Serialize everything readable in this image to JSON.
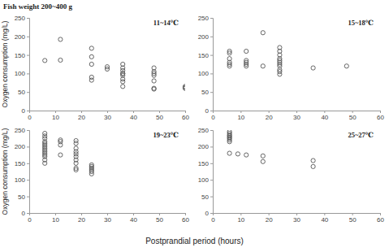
{
  "title": "Fish weight 200~400 g",
  "x_label": "Postprandial period (hours)",
  "chart_data": [
    {
      "type": "scatter",
      "title": "11~14℃",
      "y_label": "Oxygen consumption (mg/L)",
      "marker": "circle",
      "color": "#555555",
      "x": [
        6,
        12,
        12,
        24,
        24,
        24,
        24,
        24,
        30,
        30,
        36,
        36,
        36,
        36,
        36,
        36,
        36,
        36,
        36,
        48,
        48,
        48,
        48,
        48,
        48,
        48,
        60,
        60,
        60
      ],
      "values": [
        135,
        192,
        136,
        168,
        145,
        125,
        90,
        82,
        118,
        112,
        125,
        115,
        108,
        100,
        95,
        85,
        78,
        65,
        100,
        115,
        105,
        95,
        80,
        60,
        58,
        100,
        65,
        62,
        60
      ],
      "xlim": [
        0,
        60
      ],
      "ylim": [
        0,
        250
      ],
      "xticks": [
        0,
        10,
        20,
        30,
        40,
        50,
        60
      ],
      "yticks": [
        0,
        50,
        100,
        150,
        200,
        250
      ]
    },
    {
      "type": "scatter",
      "title": "15~18℃",
      "marker": "circle",
      "color": "#555555",
      "x": [
        6,
        6,
        6,
        6,
        6,
        6,
        12,
        12,
        12,
        12,
        12,
        18,
        18,
        24,
        24,
        24,
        24,
        24,
        24,
        24,
        24,
        24,
        24,
        24,
        36,
        48
      ],
      "values": [
        160,
        155,
        140,
        130,
        125,
        120,
        160,
        135,
        130,
        125,
        120,
        210,
        120,
        170,
        160,
        150,
        140,
        135,
        130,
        125,
        120,
        110,
        105,
        98,
        115,
        120
      ],
      "xlim": [
        0,
        60
      ],
      "ylim": [
        0,
        250
      ],
      "xticks": [
        0,
        10,
        20,
        30,
        40,
        50,
        60
      ],
      "yticks": [
        0,
        50,
        100,
        150,
        200,
        250
      ]
    },
    {
      "type": "scatter",
      "title": "19~23℃",
      "y_label": "Oxygen consumption (mg/L)",
      "marker": "circle",
      "color": "#555555",
      "x": [
        6,
        6,
        6,
        6,
        6,
        6,
        6,
        6,
        6,
        6,
        6,
        6,
        6,
        6,
        6,
        12,
        12,
        12,
        12,
        18,
        18,
        18,
        18,
        18,
        18,
        18,
        18,
        18,
        18,
        24,
        24,
        24,
        24,
        24,
        24
      ],
      "values": [
        240,
        232,
        225,
        215,
        210,
        205,
        200,
        195,
        190,
        185,
        180,
        175,
        170,
        160,
        150,
        220,
        215,
        205,
        175,
        218,
        210,
        195,
        185,
        178,
        170,
        160,
        150,
        135,
        130,
        145,
        140,
        135,
        130,
        125,
        118
      ],
      "xlim": [
        0,
        60
      ],
      "ylim": [
        0,
        250
      ],
      "xticks": [
        0,
        10,
        20,
        30,
        40,
        50,
        60
      ],
      "yticks": [
        0,
        50,
        100,
        150,
        200,
        250
      ]
    },
    {
      "type": "scatter",
      "title": "25~27℃",
      "marker": "circle",
      "color": "#555555",
      "x": [
        6,
        6,
        6,
        6,
        6,
        6,
        6,
        6,
        6,
        9,
        12,
        18,
        18,
        36,
        36
      ],
      "values": [
        245,
        240,
        235,
        232,
        228,
        225,
        220,
        215,
        180,
        178,
        175,
        172,
        155,
        158,
        140
      ],
      "xlim": [
        0,
        60
      ],
      "ylim": [
        0,
        250
      ],
      "xticks": [
        0,
        10,
        20,
        30,
        40,
        50,
        60
      ],
      "yticks": [
        0,
        50,
        100,
        150,
        200,
        250
      ]
    }
  ]
}
